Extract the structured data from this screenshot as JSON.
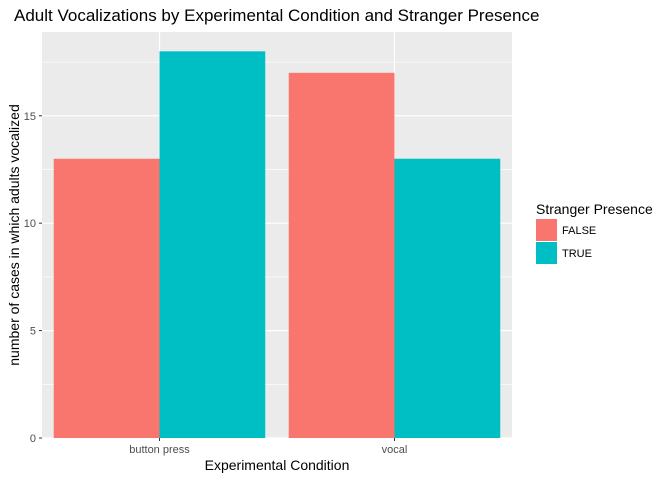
{
  "chart_data": {
    "type": "bar",
    "title": "Adult Vocalizations by Experimental Condition and Stranger Presence",
    "xlabel": "Experimental Condition",
    "ylabel": "number of cases in which adults vocalized",
    "categories": [
      "button press",
      "vocal"
    ],
    "series": [
      {
        "name": "FALSE",
        "values": [
          13,
          17
        ],
        "color": "#F8766D"
      },
      {
        "name": "TRUE",
        "values": [
          18,
          13
        ],
        "color": "#00BFC4"
      }
    ],
    "ylim": [
      0,
      18.9
    ],
    "yticks": [
      0,
      5,
      10,
      15
    ],
    "ytick_labels": [
      "0",
      "5",
      "10",
      "15"
    ],
    "grid": true,
    "panel_background": "#EBEBEB",
    "legend": {
      "title": "Stranger Presence",
      "position": "right"
    }
  }
}
